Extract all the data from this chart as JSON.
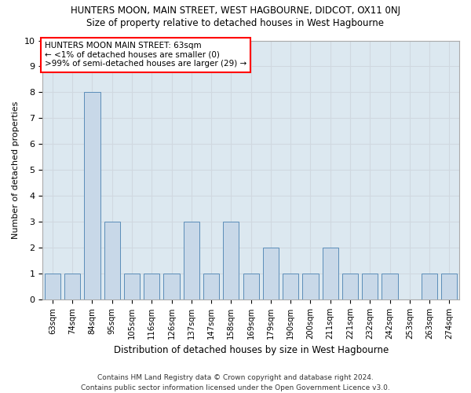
{
  "title": "HUNTERS MOON, MAIN STREET, WEST HAGBOURNE, DIDCOT, OX11 0NJ",
  "subtitle": "Size of property relative to detached houses in West Hagbourne",
  "xlabel": "Distribution of detached houses by size in West Hagbourne",
  "ylabel": "Number of detached properties",
  "categories": [
    "63sqm",
    "74sqm",
    "84sqm",
    "95sqm",
    "105sqm",
    "116sqm",
    "126sqm",
    "137sqm",
    "147sqm",
    "158sqm",
    "169sqm",
    "179sqm",
    "190sqm",
    "200sqm",
    "211sqm",
    "221sqm",
    "232sqm",
    "242sqm",
    "253sqm",
    "263sqm",
    "274sqm"
  ],
  "values": [
    1,
    1,
    8,
    3,
    1,
    1,
    1,
    3,
    1,
    3,
    1,
    2,
    1,
    1,
    2,
    1,
    1,
    1,
    0,
    1,
    1
  ],
  "bar_color": "#c8d8e8",
  "bar_edgecolor": "#5b8db8",
  "annotation_box_text": "HUNTERS MOON MAIN STREET: 63sqm\n← <1% of detached houses are smaller (0)\n>99% of semi-detached houses are larger (29) →",
  "grid_color": "#d0d8e0",
  "plot_bg_color": "#dce8f0",
  "ylim": [
    0,
    10
  ],
  "yticks": [
    0,
    1,
    2,
    3,
    4,
    5,
    6,
    7,
    8,
    9,
    10
  ],
  "footer_line1": "Contains HM Land Registry data © Crown copyright and database right 2024.",
  "footer_line2": "Contains public sector information licensed under the Open Government Licence v3.0."
}
